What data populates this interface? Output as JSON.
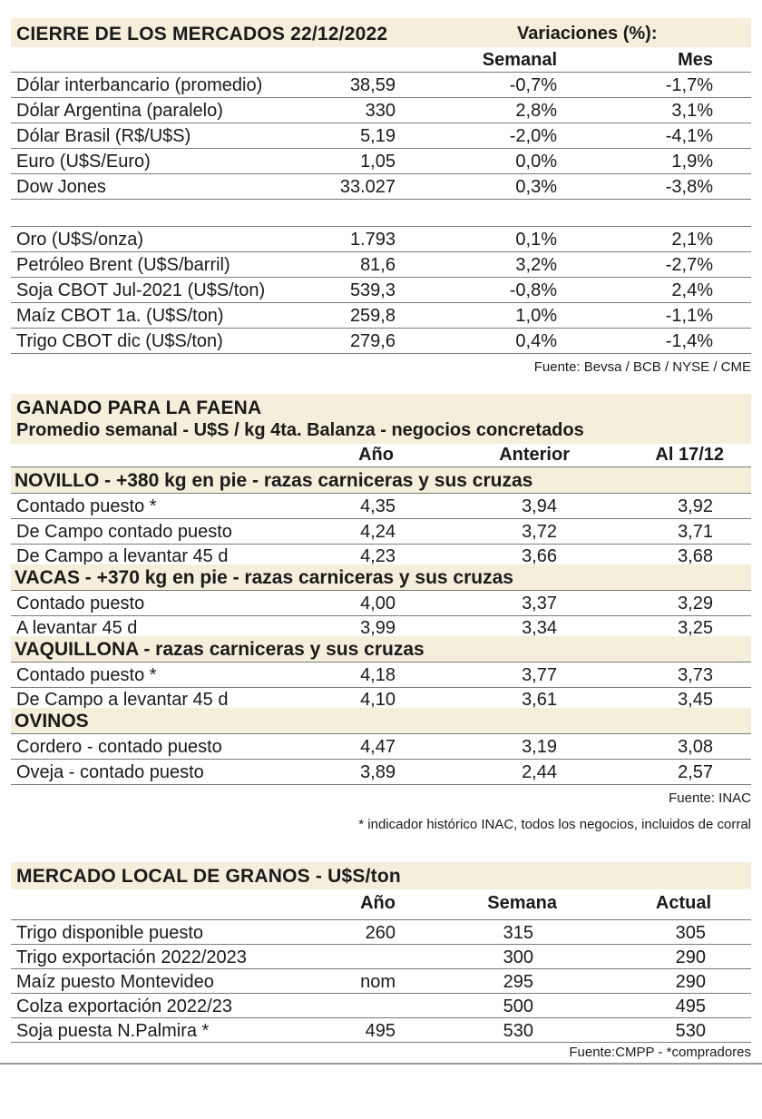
{
  "markets": {
    "title": "CIERRE DE LOS MERCADOS 22/12/2022",
    "variations_label": "Variaciones (%):",
    "col_weekly": "Semanal",
    "col_month": "Mes",
    "group1": [
      {
        "name": "Dólar interbancario (promedio)",
        "value": "38,59",
        "weekly": "-0,7%",
        "month": "-1,7%"
      },
      {
        "name": "Dólar Argentina (paralelo)",
        "value": "330",
        "weekly": "2,8%",
        "month": "3,1%"
      },
      {
        "name": "Dólar Brasil (R$/U$S)",
        "value": "5,19",
        "weekly": "-2,0%",
        "month": "-4,1%"
      },
      {
        "name": "Euro (U$S/Euro)",
        "value": "1,05",
        "weekly": "0,0%",
        "month": "1,9%"
      },
      {
        "name": "Dow Jones",
        "value": "33.027",
        "weekly": "0,3%",
        "month": "-3,8%"
      }
    ],
    "group2": [
      {
        "name": "Oro (U$S/onza)",
        "value": "1.793",
        "weekly": "0,1%",
        "month": "2,1%"
      },
      {
        "name": "Petróleo Brent (U$S/barril)",
        "value": "81,6",
        "weekly": "3,2%",
        "month": "-2,7%"
      },
      {
        "name": "Soja CBOT Jul-2021 (U$S/ton)",
        "value": "539,3",
        "weekly": "-0,8%",
        "month": "2,4%"
      },
      {
        "name": "Maíz CBOT 1a. (U$S/ton)",
        "value": "259,8",
        "weekly": "1,0%",
        "month": "-1,1%"
      },
      {
        "name": "Trigo CBOT dic (U$S/ton)",
        "value": "279,6",
        "weekly": "0,4%",
        "month": "-1,4%"
      }
    ],
    "source": "Fuente: Bevsa / BCB / NYSE / CME"
  },
  "cattle": {
    "title": "GANADO PARA LA FAENA",
    "subtitle": "Promedio semanal - U$S / kg 4ta. Balanza - negocios concretados",
    "col_year": "Año",
    "col_prev": "Anterior",
    "col_current": "Al 17/12",
    "categories": [
      {
        "name": "NOVILLO - +380 kg en pie - razas carniceras y sus cruzas",
        "rows": [
          {
            "name": "Contado puesto *",
            "year": "4,35",
            "prev": "3,94",
            "current": "3,92"
          },
          {
            "name": "De Campo contado puesto",
            "year": "4,24",
            "prev": "3,72",
            "current": "3,71"
          },
          {
            "name": "De Campo a levantar 45 d",
            "year": "4,23",
            "prev": "3,66",
            "current": "3,68"
          }
        ]
      },
      {
        "name": "VACAS - +370 kg en pie - razas carniceras y sus cruzas",
        "rows": [
          {
            "name": "Contado puesto",
            "year": "4,00",
            "prev": "3,37",
            "current": "3,29"
          },
          {
            "name": "A levantar 45 d",
            "year": "3,99",
            "prev": "3,34",
            "current": "3,25"
          }
        ]
      },
      {
        "name": "VAQUILLONA - razas carniceras y sus cruzas",
        "rows": [
          {
            "name": "Contado puesto *",
            "year": "4,18",
            "prev": "3,77",
            "current": "3,73"
          },
          {
            "name": "De Campo a levantar 45 d",
            "year": "4,10",
            "prev": "3,61",
            "current": "3,45"
          }
        ]
      },
      {
        "name": "OVINOS",
        "rows": [
          {
            "name": "Cordero - contado puesto",
            "year": "4,47",
            "prev": "3,19",
            "current": "3,08"
          },
          {
            "name": "Oveja - contado puesto",
            "year": "3,89",
            "prev": "2,44",
            "current": "2,57"
          }
        ]
      }
    ],
    "source": "Fuente: INAC",
    "footnote": "* indicador histórico INAC, todos los negocios, incluidos de corral"
  },
  "grains": {
    "title": "MERCADO LOCAL DE GRANOS - U$S/ton",
    "col_year": "Año",
    "col_week": "Semana",
    "col_current": "Actual",
    "rows": [
      {
        "name": "Trigo disponible puesto",
        "year": "260",
        "week": "315",
        "current": "305"
      },
      {
        "name": "Trigo exportación 2022/2023",
        "year": "",
        "week": "300",
        "current": "290"
      },
      {
        "name": "Maíz puesto Montevideo",
        "year": "nom",
        "week": "295",
        "current": "290"
      },
      {
        "name": "Colza exportación 2022/23",
        "year": "",
        "week": "500",
        "current": "495"
      },
      {
        "name": "Soja puesta N.Palmira *",
        "year": "495",
        "week": "530",
        "current": "530"
      }
    ],
    "source": "Fuente:CMPP - *compradores"
  }
}
